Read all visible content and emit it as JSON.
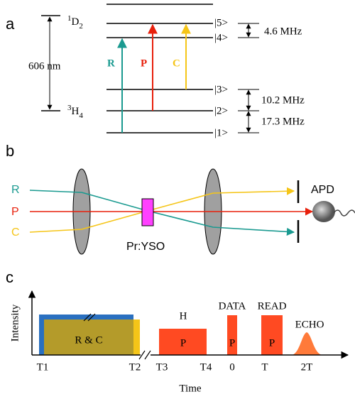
{
  "panel_a": {
    "label": "a",
    "upper_level": {
      "sup": "1",
      "base": "D",
      "sub": "2"
    },
    "lower_level": {
      "sup": "3",
      "base": "H",
      "sub": "4"
    },
    "wavelength": "606 nm",
    "beams": [
      "R",
      "P",
      "C"
    ],
    "states": [
      "|5>",
      "|4>",
      "|3>",
      "|2>",
      "|1>"
    ],
    "splittings": [
      "4.6 MHz",
      "10.2 MHz",
      "17.3 MHz"
    ]
  },
  "panel_b": {
    "label": "b",
    "beams": [
      "R",
      "P",
      "C"
    ],
    "crystal": "Pr:YSO",
    "detector": "APD"
  },
  "panel_c": {
    "label": "c",
    "y_axis": "Intensity",
    "x_axis": "Time",
    "pulses": [
      {
        "label": "R & C"
      },
      {
        "name": "H",
        "label": "P"
      },
      {
        "name": "DATA",
        "label": "P"
      },
      {
        "name": "READ",
        "label": "P"
      },
      {
        "name": "ECHO"
      }
    ],
    "ticks": [
      "T1",
      "T2",
      "T3",
      "T4",
      "0",
      "T",
      "2T"
    ]
  }
}
